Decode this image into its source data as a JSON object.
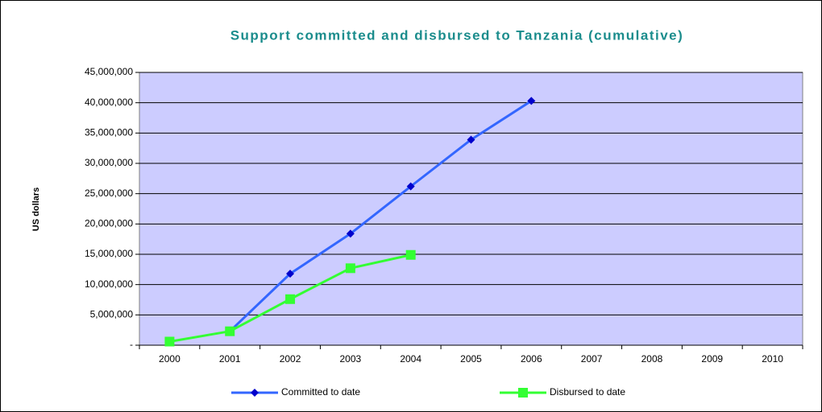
{
  "chart_data": {
    "type": "line",
    "title": "Support committed and disbursed to Tanzania (cumulative)",
    "y_label": "US dollars",
    "categories": [
      "2000",
      "2001",
      "2002",
      "2003",
      "2004",
      "2005",
      "2006",
      "2007",
      "2008",
      "2009",
      "2010"
    ],
    "series": [
      {
        "name": "Committed to date",
        "color": "#3366ff",
        "marker_color": "#0000cc",
        "marker": "diamond",
        "values": [
          null,
          2300000,
          11800000,
          18400000,
          26200000,
          33900000,
          40300000,
          null,
          null,
          null,
          null
        ]
      },
      {
        "name": "Disbursed to date",
        "color": "#33ff33",
        "marker_color": "#33ff33",
        "marker": "square",
        "values": [
          600000,
          2300000,
          7600000,
          12700000,
          14900000,
          null,
          null,
          null,
          null,
          null,
          null
        ]
      }
    ],
    "ylim": [
      0,
      45000000
    ],
    "yticks": [
      {
        "value": 0,
        "label": "-"
      },
      {
        "value": 5000000,
        "label": "5,000,000"
      },
      {
        "value": 10000000,
        "label": "10,000,000"
      },
      {
        "value": 15000000,
        "label": "15,000,000"
      },
      {
        "value": 20000000,
        "label": "20,000,000"
      },
      {
        "value": 25000000,
        "label": "25,000,000"
      },
      {
        "value": 30000000,
        "label": "30,000,000"
      },
      {
        "value": 35000000,
        "label": "35,000,000"
      },
      {
        "value": 40000000,
        "label": "40,000,000"
      },
      {
        "value": 45000000,
        "label": "45,000,000"
      }
    ],
    "grid": true,
    "plot_background": "#ccccff",
    "legend": "bottom"
  }
}
